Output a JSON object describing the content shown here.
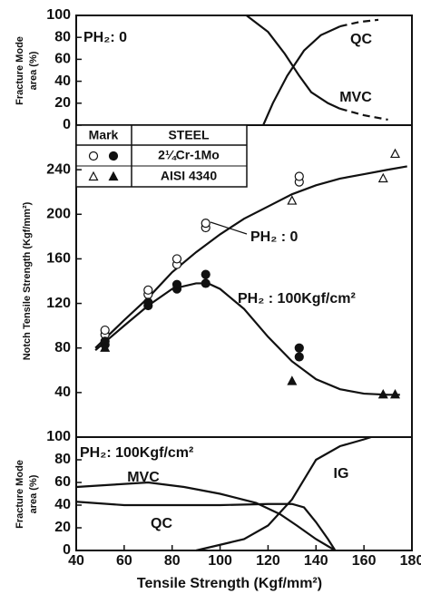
{
  "chart_data": [
    {
      "type": "line",
      "ylabel": [
        "Fracture Mode",
        "area (%)"
      ],
      "xlim": [
        40,
        180
      ],
      "ylim": [
        0,
        100
      ],
      "yticks": [
        0,
        20,
        40,
        60,
        80,
        100
      ],
      "series": [
        {
          "x": [
            111,
            120,
            127,
            133,
            138,
            145,
            150
          ],
          "values": [
            100,
            85,
            65,
            45,
            30,
            20,
            15
          ],
          "dashed": false
        },
        {
          "x": [
            150,
            160,
            170
          ],
          "values": [
            15,
            9,
            5
          ],
          "dashed": true
        },
        {
          "x": [
            118,
            122,
            128,
            135,
            142,
            150
          ],
          "values": [
            0,
            20,
            45,
            68,
            82,
            90
          ],
          "dashed": false
        },
        {
          "x": [
            150,
            158,
            166
          ],
          "values": [
            90,
            94,
            96
          ],
          "dashed": true
        }
      ],
      "annotations": [
        "PH₂: 0",
        "QC",
        "MVC"
      ]
    },
    {
      "type": "scatter",
      "ylabel": "Notch Tensile Strength (Kgf/mm²)",
      "xlim": [
        40,
        180
      ],
      "ylim": [
        0,
        280
      ],
      "yticks": [
        40,
        80,
        120,
        160,
        200,
        240
      ],
      "legend": {
        "headers": [
          "Mark",
          "STEEL"
        ],
        "rows": [
          "2¼Cr-1Mo",
          "AISI 4340"
        ]
      },
      "series": [
        {
          "marker": "open-circle",
          "x": [
            52,
            52,
            70,
            70,
            82,
            82,
            94,
            94,
            133,
            133
          ],
          "values": [
            92,
            96,
            128,
            132,
            155,
            160,
            188,
            192,
            229,
            234
          ]
        },
        {
          "marker": "filled-circle",
          "x": [
            52,
            52,
            70,
            70,
            82,
            82,
            94,
            94,
            133,
            133
          ],
          "values": [
            83,
            86,
            118,
            121,
            133,
            137,
            138,
            146,
            72,
            80
          ]
        },
        {
          "marker": "open-triangle",
          "x": [
            130,
            168,
            173
          ],
          "values": [
            212,
            232,
            254
          ]
        },
        {
          "marker": "filled-triangle",
          "x": [
            52,
            130,
            168,
            173
          ],
          "values": [
            80,
            50,
            38,
            38
          ]
        }
      ],
      "curves": [
        {
          "x": [
            48,
            60,
            70,
            80,
            90,
            100,
            110,
            120,
            130,
            140,
            150,
            160,
            170,
            178
          ],
          "values": [
            80,
            105,
            125,
            148,
            166,
            182,
            196,
            207,
            218,
            226,
            232,
            236,
            240,
            243
          ]
        },
        {
          "x": [
            48,
            60,
            70,
            80,
            90,
            95,
            100,
            110,
            120,
            130,
            140,
            150,
            160,
            170,
            175
          ],
          "values": [
            78,
            100,
            118,
            133,
            138,
            138,
            133,
            115,
            90,
            68,
            52,
            43,
            39,
            38,
            38
          ]
        }
      ],
      "annotations": [
        "PH₂ : 0",
        "PH₂ : 100Kgf/cm²"
      ]
    },
    {
      "type": "line",
      "ylabel": [
        "Fracture Mode",
        "area (%)"
      ],
      "xlabel": "Tensile Strength (Kgf/mm²)",
      "xlim": [
        40,
        180
      ],
      "ylim": [
        0,
        100
      ],
      "yticks": [
        0,
        20,
        40,
        60,
        80,
        100
      ],
      "xticks": [
        40,
        60,
        80,
        100,
        120,
        140,
        160,
        180
      ],
      "series": [
        {
          "x": [
            40,
            55,
            70,
            85,
            100,
            115,
            125,
            132,
            140,
            148
          ],
          "values": [
            56,
            58,
            60,
            56,
            50,
            42,
            32,
            22,
            10,
            0
          ],
          "dashed": false
        },
        {
          "x": [
            40,
            60,
            80,
            100,
            120,
            130,
            135,
            140,
            145,
            148
          ],
          "values": [
            43,
            40,
            40,
            40,
            41,
            41,
            38,
            25,
            10,
            0
          ],
          "dashed": false
        },
        {
          "x": [
            90,
            110,
            120,
            130,
            140,
            150,
            160,
            163
          ],
          "values": [
            0,
            10,
            22,
            45,
            80,
            92,
            98,
            100
          ],
          "dashed": false
        }
      ],
      "annotations": [
        "PH₂: 100Kgf/cm²",
        "MVC",
        "QC",
        "IG"
      ]
    }
  ]
}
